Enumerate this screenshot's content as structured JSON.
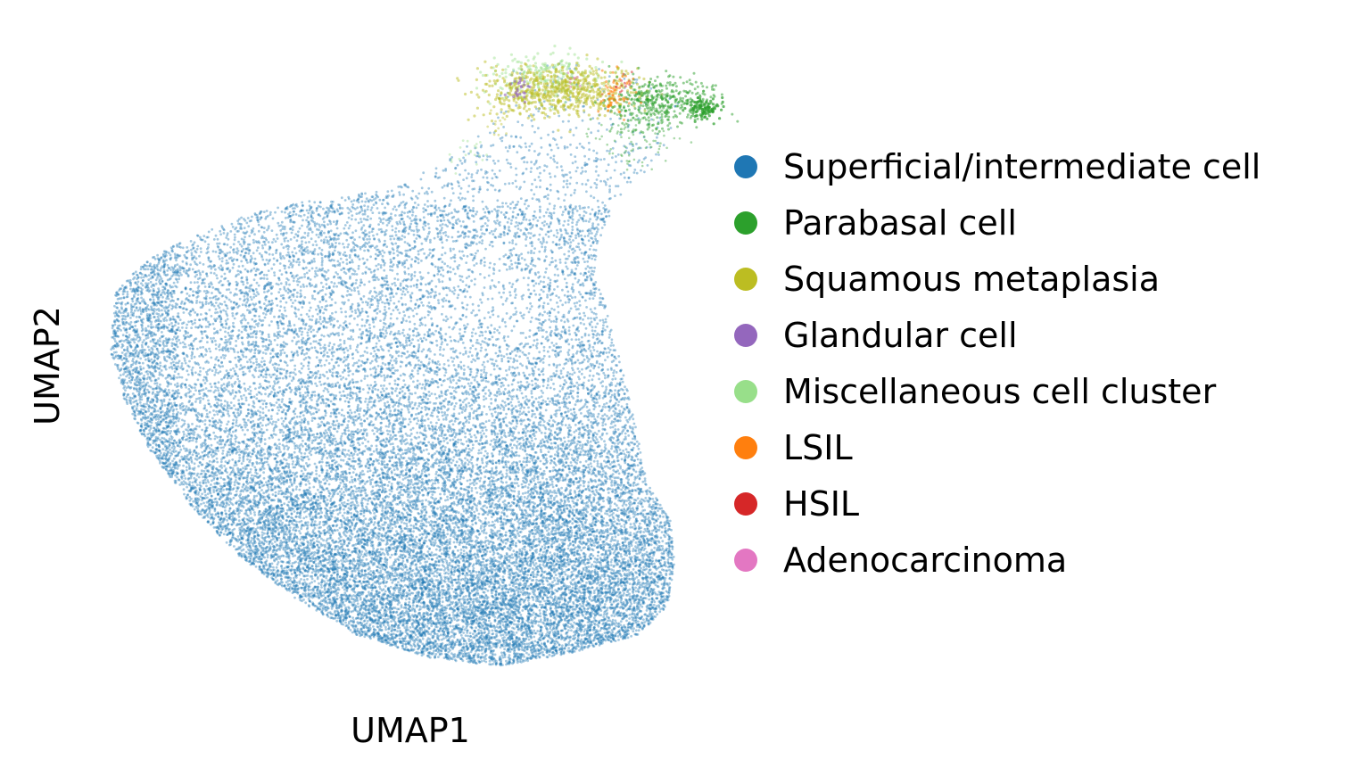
{
  "chart_data": {
    "type": "scatter",
    "title": "",
    "xlabel": "UMAP1",
    "ylabel": "UMAP2",
    "grid": false,
    "axes_visible": false,
    "legend_placement": "right",
    "point_alpha": 0.4,
    "series": [
      {
        "name": "Superficial/intermediate cell",
        "color": "#1f77b4",
        "dominant": true
      },
      {
        "name": "Parabasal cell",
        "color": "#2ca02c"
      },
      {
        "name": "Squamous metaplasia",
        "color": "#bcbd22"
      },
      {
        "name": "Glandular cell",
        "color": "#9467bd"
      },
      {
        "name": "Miscellaneous cell cluster",
        "color": "#98df8a"
      },
      {
        "name": "LSIL",
        "color": "#ff7f0e"
      },
      {
        "name": "HSIL",
        "color": "#d62728"
      },
      {
        "name": "Adenocarcinoma",
        "color": "#e377c2"
      }
    ]
  }
}
